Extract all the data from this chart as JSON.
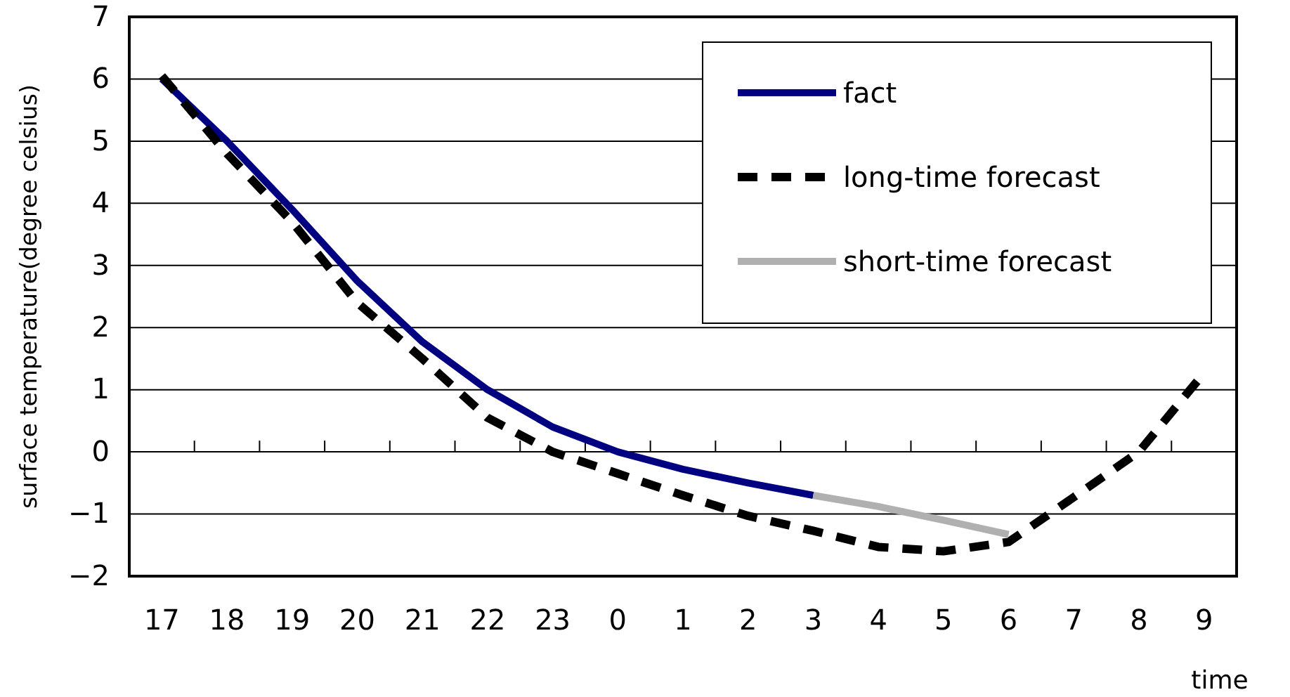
{
  "chart_data": {
    "type": "line",
    "xlabel": "time",
    "ylabel": "surface temperature(degree celsius)",
    "categories": [
      "17",
      "18",
      "19",
      "20",
      "21",
      "22",
      "23",
      "0",
      "1",
      "2",
      "3",
      "4",
      "5",
      "6",
      "7",
      "8",
      "9"
    ],
    "ylim": [
      -2,
      7
    ],
    "yticks": [
      -2,
      -1,
      0,
      1,
      2,
      3,
      4,
      5,
      6,
      7
    ],
    "grid": "y",
    "legend": "top right",
    "marker": "none",
    "series": [
      {
        "name": "fact",
        "color": "#000080",
        "line_style": "solid",
        "values": [
          6.0,
          5.0,
          3.9,
          2.75,
          1.77,
          1.0,
          0.4,
          0.0,
          -0.28,
          -0.5,
          -0.7,
          null,
          null,
          null,
          null,
          null,
          null
        ]
      },
      {
        "name": "long-time forecast",
        "color": "#000000",
        "line_style": "dashed",
        "values": [
          6.05,
          4.8,
          3.7,
          2.4,
          1.5,
          0.55,
          0.0,
          -0.35,
          -0.7,
          -1.03,
          -1.27,
          -1.53,
          -1.6,
          -1.45,
          -0.73,
          0.0,
          1.27
        ]
      },
      {
        "name": "short-time forecast",
        "color": "#b0b0b0",
        "line_style": "solid",
        "values": [
          null,
          null,
          null,
          null,
          null,
          null,
          null,
          null,
          null,
          null,
          -0.7,
          -0.88,
          -1.1,
          -1.33,
          null,
          null,
          null
        ]
      }
    ]
  }
}
